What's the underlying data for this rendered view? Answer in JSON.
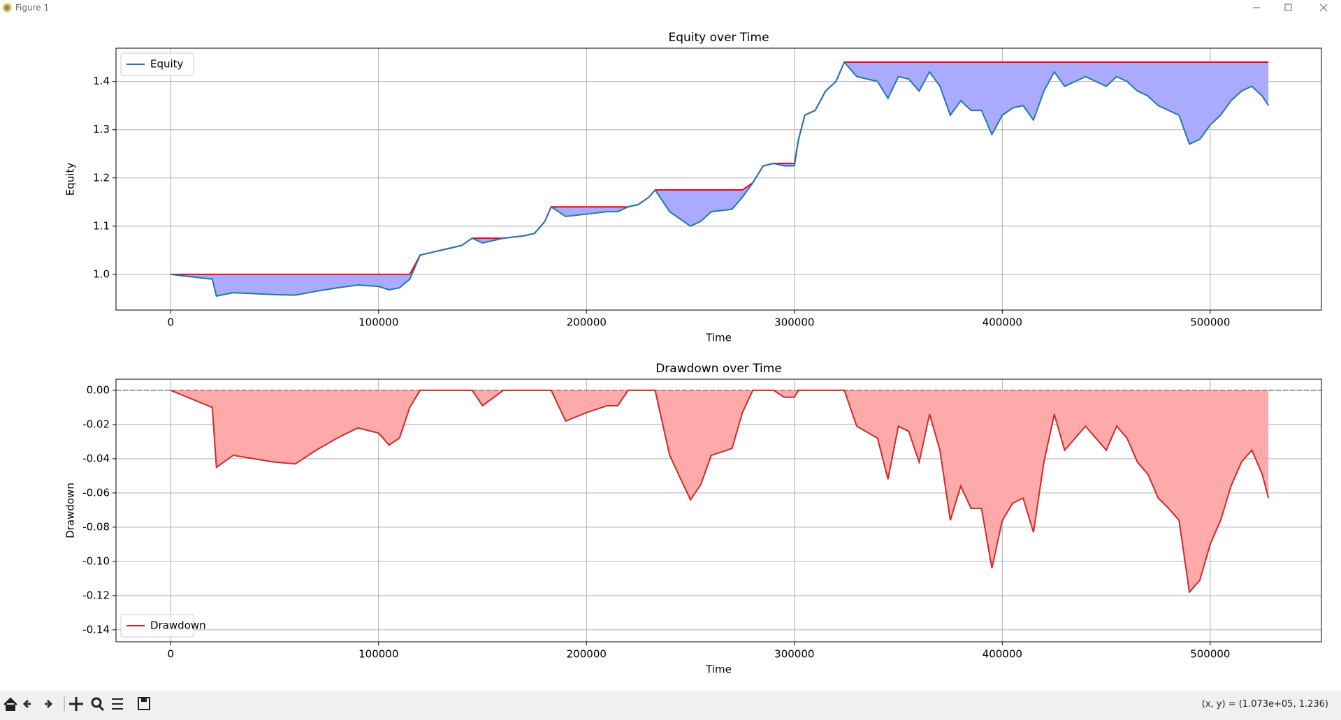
{
  "window": {
    "title": "Figure 1",
    "status": "(x, y) = (1.073e+05, 1.236)"
  },
  "chart_data": [
    {
      "type": "line",
      "title": "Equity over Time",
      "xlabel": "Time",
      "ylabel": "Equity",
      "x": [
        0,
        10000,
        20000,
        22000,
        30000,
        40000,
        50000,
        60000,
        70000,
        80000,
        90000,
        100000,
        105000,
        110000,
        115000,
        120000,
        125000,
        130000,
        140000,
        145000,
        150000,
        160000,
        170000,
        175000,
        180000,
        183000,
        190000,
        200000,
        210000,
        215000,
        220000,
        225000,
        230000,
        233000,
        240000,
        250000,
        255000,
        260000,
        270000,
        275000,
        280000,
        285000,
        290000,
        295000,
        300000,
        302000,
        305000,
        310000,
        315000,
        320000,
        324000,
        330000,
        340000,
        345000,
        350000,
        355000,
        360000,
        365000,
        370000,
        375000,
        380000,
        385000,
        390000,
        395000,
        400000,
        405000,
        410000,
        415000,
        420000,
        425000,
        430000,
        440000,
        450000,
        455000,
        460000,
        465000,
        470000,
        475000,
        480000,
        485000,
        490000,
        495000,
        500000,
        505000,
        510000,
        515000,
        520000,
        525000,
        528000
      ],
      "series": [
        {
          "name": "Equity",
          "color": "#1f77b4",
          "values": [
            1.0,
            0.995,
            0.99,
            0.955,
            0.962,
            0.96,
            0.958,
            0.957,
            0.965,
            0.972,
            0.978,
            0.975,
            0.968,
            0.972,
            0.99,
            1.04,
            1.045,
            1.05,
            1.06,
            1.075,
            1.065,
            1.075,
            1.08,
            1.085,
            1.11,
            1.14,
            1.12,
            1.125,
            1.13,
            1.13,
            1.14,
            1.145,
            1.16,
            1.175,
            1.13,
            1.1,
            1.11,
            1.13,
            1.135,
            1.16,
            1.19,
            1.225,
            1.23,
            1.225,
            1.225,
            1.28,
            1.33,
            1.34,
            1.38,
            1.4,
            1.44,
            1.41,
            1.4,
            1.365,
            1.41,
            1.405,
            1.38,
            1.42,
            1.39,
            1.33,
            1.36,
            1.34,
            1.34,
            1.29,
            1.33,
            1.345,
            1.35,
            1.32,
            1.38,
            1.42,
            1.39,
            1.41,
            1.39,
            1.41,
            1.4,
            1.38,
            1.37,
            1.35,
            1.34,
            1.33,
            1.27,
            1.28,
            1.31,
            1.33,
            1.36,
            1.38,
            1.39,
            1.37,
            1.35
          ]
        },
        {
          "color": "#ff0000",
          "values": [
            1.0,
            1.0,
            1.0,
            1.0,
            1.0,
            1.0,
            1.0,
            1.0,
            1.0,
            1.0,
            1.0,
            1.0,
            1.0,
            1.0,
            1.0,
            1.04,
            1.045,
            1.05,
            1.06,
            1.075,
            1.075,
            1.075,
            1.08,
            1.085,
            1.11,
            1.14,
            1.14,
            1.14,
            1.14,
            1.14,
            1.14,
            1.145,
            1.16,
            1.175,
            1.175,
            1.175,
            1.175,
            1.175,
            1.175,
            1.175,
            1.19,
            1.225,
            1.23,
            1.23,
            1.23,
            1.28,
            1.33,
            1.34,
            1.38,
            1.4,
            1.44,
            1.44,
            1.44,
            1.44,
            1.44,
            1.44,
            1.44,
            1.44,
            1.44,
            1.44,
            1.44,
            1.44,
            1.44,
            1.44,
            1.44,
            1.44,
            1.44,
            1.44,
            1.44,
            1.44,
            1.44,
            1.44,
            1.44,
            1.44,
            1.44,
            1.44,
            1.44,
            1.44,
            1.44,
            1.44,
            1.44,
            1.44,
            1.44,
            1.44,
            1.44,
            1.44,
            1.44,
            1.44,
            1.44
          ]
        }
      ],
      "fill_color": "#aaaaff",
      "xlim": [
        -26300,
        553500
      ],
      "xticks": [
        0,
        100000,
        200000,
        300000,
        400000,
        500000
      ],
      "ylim": [
        0.926,
        1.469
      ],
      "yticks": [
        {
          "value": 1,
          "label": "1.0"
        },
        1.1,
        1.2,
        1.3,
        1.4
      ],
      "grid": true,
      "legend": "upper left"
    },
    {
      "type": "line",
      "title": "Drawdown over Time",
      "xlabel": "Time",
      "ylabel": "Drawdown",
      "x": [
        0,
        10000,
        20000,
        22000,
        30000,
        40000,
        50000,
        60000,
        70000,
        80000,
        90000,
        100000,
        105000,
        110000,
        115000,
        120000,
        125000,
        130000,
        140000,
        145000,
        150000,
        160000,
        170000,
        175000,
        180000,
        183000,
        190000,
        200000,
        210000,
        215000,
        220000,
        225000,
        230000,
        233000,
        240000,
        250000,
        255000,
        260000,
        270000,
        275000,
        280000,
        285000,
        290000,
        295000,
        300000,
        302000,
        305000,
        310000,
        315000,
        320000,
        324000,
        330000,
        340000,
        345000,
        350000,
        355000,
        360000,
        365000,
        370000,
        375000,
        380000,
        385000,
        390000,
        395000,
        400000,
        405000,
        410000,
        415000,
        420000,
        425000,
        430000,
        440000,
        450000,
        455000,
        460000,
        465000,
        470000,
        475000,
        480000,
        485000,
        490000,
        495000,
        500000,
        505000,
        510000,
        515000,
        520000,
        525000,
        528000
      ],
      "series": [
        {
          "name": "Drawdown",
          "color": "#d62728",
          "values": [
            0,
            -0.005,
            -0.01,
            -0.045,
            -0.038,
            -0.04,
            -0.042,
            -0.043,
            -0.035,
            -0.028,
            -0.022,
            -0.025,
            -0.032,
            -0.028,
            -0.01,
            0,
            0,
            0,
            0,
            0,
            -0.009,
            0,
            0,
            0,
            0,
            0,
            -0.018,
            -0.013,
            -0.009,
            -0.009,
            0,
            0,
            0,
            0,
            -0.038,
            -0.064,
            -0.055,
            -0.038,
            -0.034,
            -0.013,
            0,
            0,
            0,
            -0.004,
            -0.004,
            0,
            0,
            0,
            0,
            0,
            0,
            -0.021,
            -0.028,
            -0.052,
            -0.021,
            -0.024,
            -0.042,
            -0.014,
            -0.035,
            -0.076,
            -0.056,
            -0.069,
            -0.069,
            -0.104,
            -0.076,
            -0.066,
            -0.063,
            -0.083,
            -0.042,
            -0.014,
            -0.035,
            -0.021,
            -0.035,
            -0.021,
            -0.028,
            -0.042,
            -0.049,
            -0.063,
            -0.069,
            -0.076,
            -0.118,
            -0.111,
            -0.09,
            -0.076,
            -0.056,
            -0.042,
            -0.035,
            -0.049,
            -0.063
          ]
        }
      ],
      "fill_color": "#ffaaaa",
      "hline": 0,
      "hline_color": "#808080",
      "xlim": [
        -26300,
        553500
      ],
      "xticks": [
        0,
        100000,
        200000,
        300000,
        400000,
        500000
      ],
      "ylim": [
        -0.147,
        0.0065
      ],
      "yticks": [
        {
          "value": 0,
          "label": "0.00"
        },
        {
          "value": -0.02,
          "label": "-0.02"
        },
        {
          "value": -0.04,
          "label": "-0.04"
        },
        {
          "value": -0.06,
          "label": "-0.06"
        },
        {
          "value": -0.08,
          "label": "-0.08"
        },
        {
          "value": -0.1,
          "label": "-0.10"
        },
        {
          "value": -0.12,
          "label": "-0.12"
        },
        {
          "value": -0.14,
          "label": "-0.14"
        }
      ],
      "grid": true,
      "legend": "lower left"
    }
  ]
}
